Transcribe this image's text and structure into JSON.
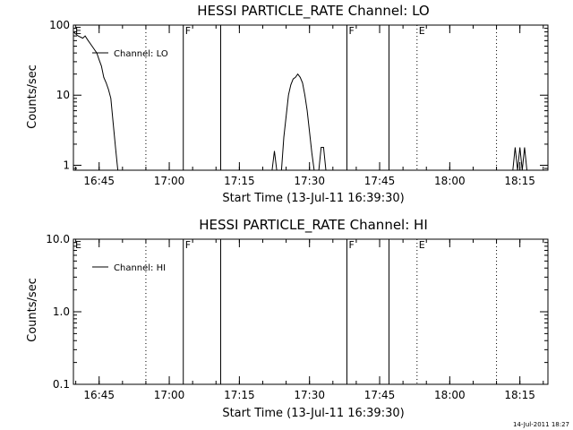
{
  "chart_data": [
    {
      "type": "line",
      "title": "HESSI PARTICLE_RATE Channel: LO",
      "xlabel": "Start Time (13-Jul-11 16:39:30)",
      "ylabel": "Counts/sec",
      "y_scale": "log",
      "ylim": [
        0.85,
        100
      ],
      "xlim": [
        "16:39:30",
        "18:21:00"
      ],
      "x_ticks": [
        "16:45",
        "17:00",
        "17:15",
        "17:30",
        "17:45",
        "18:00",
        "18:15"
      ],
      "y_ticks": [
        "1",
        "10",
        "100"
      ],
      "series": [
        {
          "name": "Channel: LO",
          "points": [
            [
              "16:39:30",
              80
            ],
            [
              "16:40:30",
              70
            ],
            [
              "16:41:30",
              65
            ],
            [
              "16:42:00",
              70
            ],
            [
              "16:42:30",
              62
            ],
            [
              "16:43:30",
              50
            ],
            [
              "16:44:30",
              40
            ],
            [
              "16:45:00",
              32
            ],
            [
              "16:45:30",
              26
            ],
            [
              "16:46:00",
              18
            ],
            [
              "16:46:30",
              15
            ],
            [
              "16:47:00",
              12
            ],
            [
              "16:47:30",
              9
            ],
            [
              "16:48:00",
              4
            ],
            [
              "16:48:30",
              1.8
            ],
            [
              "16:49:00",
              0.85
            ],
            [
              "17:22:00",
              0.85
            ],
            [
              "17:22:30",
              1.6
            ],
            [
              "17:23:00",
              0.85
            ],
            [
              "17:24:00",
              0.85
            ],
            [
              "17:24:30",
              2.5
            ],
            [
              "17:25:00",
              5
            ],
            [
              "17:25:30",
              10
            ],
            [
              "17:26:00",
              14
            ],
            [
              "17:26:30",
              17
            ],
            [
              "17:27:00",
              18
            ],
            [
              "17:27:30",
              20
            ],
            [
              "17:28:00",
              18
            ],
            [
              "17:28:30",
              15
            ],
            [
              "17:29:00",
              10
            ],
            [
              "17:29:30",
              6
            ],
            [
              "17:30:00",
              3
            ],
            [
              "17:30:30",
              1.5
            ],
            [
              "17:31:00",
              0.85
            ],
            [
              "17:32:00",
              0.85
            ],
            [
              "17:32:30",
              1.8
            ],
            [
              "17:33:00",
              1.8
            ],
            [
              "17:33:30",
              0.85
            ],
            [
              "18:13:30",
              0.85
            ],
            [
              "18:14:00",
              1.8
            ],
            [
              "18:14:30",
              0.85
            ],
            [
              "18:15:00",
              1.8
            ],
            [
              "18:15:30",
              0.85
            ],
            [
              "18:16:00",
              1.8
            ],
            [
              "18:16:30",
              0.85
            ]
          ]
        }
      ],
      "markers": [
        {
          "label": "E",
          "time": "16:39:30",
          "style": "dotted"
        },
        {
          "label": "",
          "time": "16:55:00",
          "style": "dotted"
        },
        {
          "label": "F",
          "time": "17:03:00",
          "style": "solid"
        },
        {
          "label": "",
          "time": "17:11:00",
          "style": "solid"
        },
        {
          "label": "F",
          "time": "17:38:00",
          "style": "solid"
        },
        {
          "label": "",
          "time": "17:47:00",
          "style": "solid"
        },
        {
          "label": "E",
          "time": "17:53:00",
          "style": "dotted"
        },
        {
          "label": "",
          "time": "18:10:00",
          "style": "dotted"
        }
      ]
    },
    {
      "type": "line",
      "title": "HESSI PARTICLE_RATE Channel: HI",
      "xlabel": "Start Time (13-Jul-11 16:39:30)",
      "ylabel": "Counts/sec",
      "y_scale": "log",
      "ylim": [
        0.1,
        10
      ],
      "xlim": [
        "16:39:30",
        "18:21:00"
      ],
      "x_ticks": [
        "16:45",
        "17:00",
        "17:15",
        "17:30",
        "17:45",
        "18:00",
        "18:15"
      ],
      "y_ticks": [
        "0.1",
        "1.0",
        "10.0"
      ],
      "series": [
        {
          "name": "Channel: HI",
          "points": []
        }
      ],
      "markers": [
        {
          "label": "E",
          "time": "16:39:30",
          "style": "dotted"
        },
        {
          "label": "",
          "time": "16:55:00",
          "style": "dotted"
        },
        {
          "label": "F",
          "time": "17:03:00",
          "style": "solid"
        },
        {
          "label": "",
          "time": "17:11:00",
          "style": "solid"
        },
        {
          "label": "F",
          "time": "17:38:00",
          "style": "solid"
        },
        {
          "label": "",
          "time": "17:47:00",
          "style": "solid"
        },
        {
          "label": "E",
          "time": "17:53:00",
          "style": "dotted"
        },
        {
          "label": "",
          "time": "18:10:00",
          "style": "dotted"
        }
      ]
    }
  ],
  "footer": {
    "timestamp": "14-Jul-2011 18:27"
  }
}
